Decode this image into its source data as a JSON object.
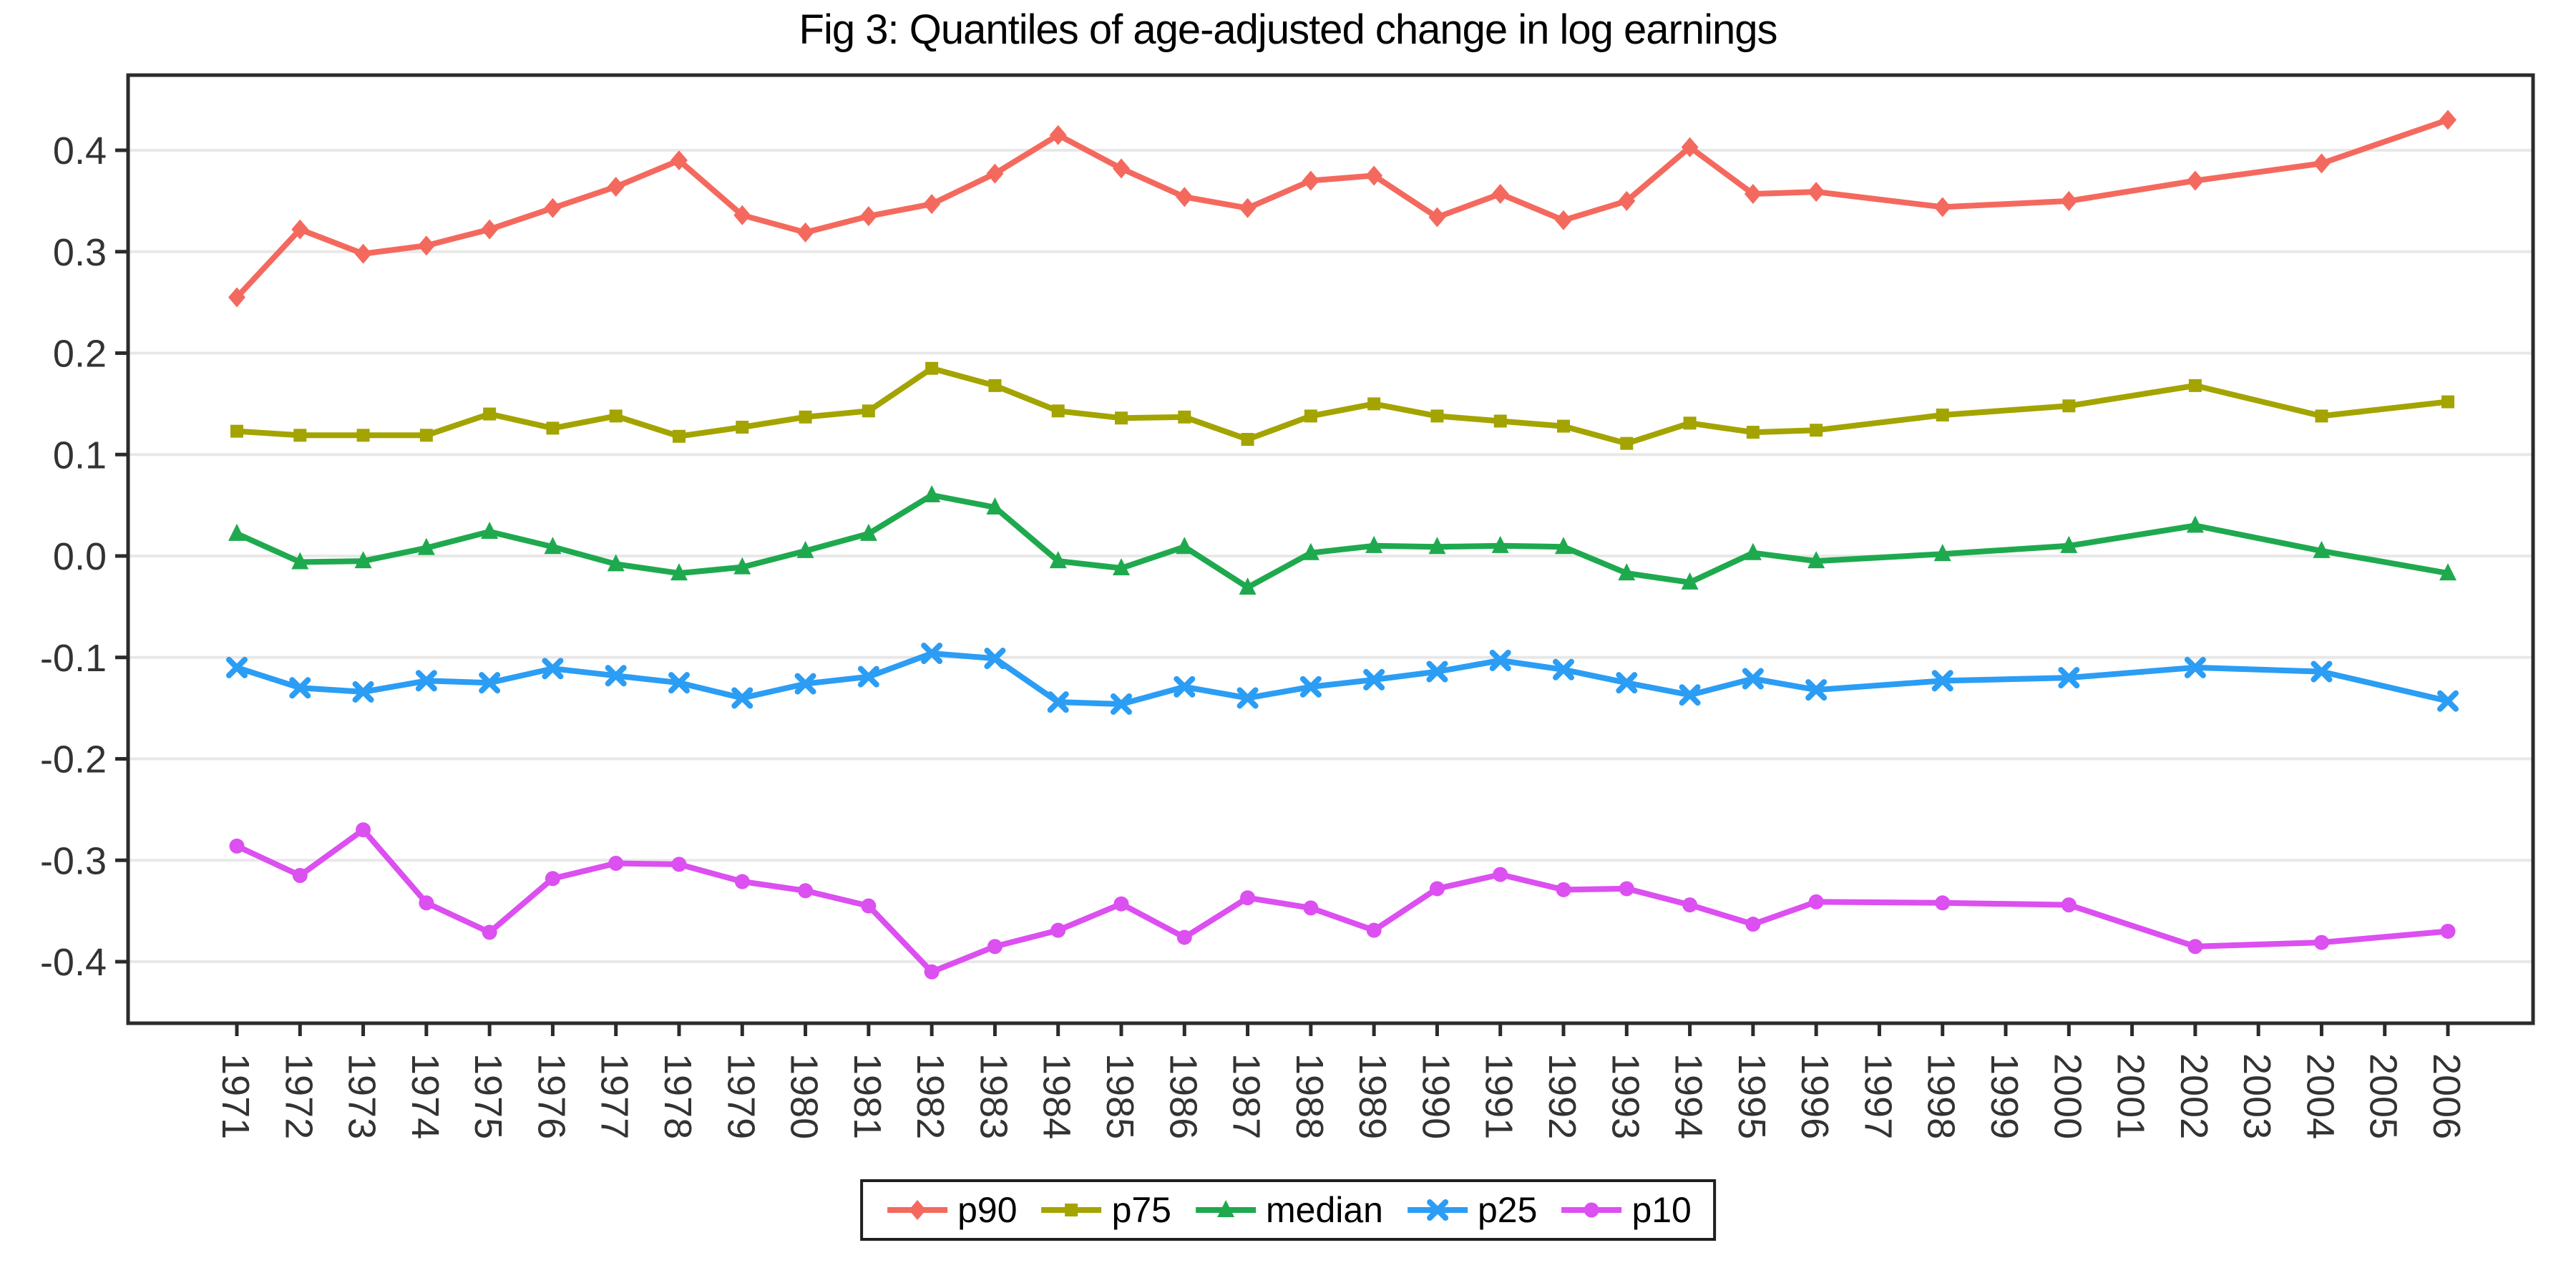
{
  "title": "Fig 3: Quantiles of age-adjusted change in log earnings",
  "chart_data": {
    "type": "line",
    "title": "Fig 3: Quantiles of age-adjusted change in log earnings",
    "xlabel": "",
    "ylabel": "",
    "grid": "horizontal-major-only",
    "legend_position": "bottom-center",
    "background": "#ffffff",
    "gridline_color": "#e8e8e8",
    "axis_color": "#2b2b2b",
    "tick_label_color": "#333333",
    "ylim": [
      -0.46,
      0.475
    ],
    "x_axis_ticks": [
      1971,
      1972,
      1973,
      1974,
      1975,
      1976,
      1977,
      1978,
      1979,
      1980,
      1981,
      1982,
      1983,
      1984,
      1985,
      1986,
      1987,
      1988,
      1989,
      1990,
      1991,
      1992,
      1993,
      1994,
      1995,
      1996,
      1997,
      1998,
      1999,
      2000,
      2001,
      2002,
      2003,
      2004,
      2005,
      2006
    ],
    "y_tick_values": [
      0.4,
      0.3,
      0.2,
      0.1,
      0.0,
      -0.1,
      -0.2,
      -0.3,
      -0.4
    ],
    "y_tick_labels": [
      "0.4",
      "0.3",
      "0.2",
      "0.1",
      "0.0",
      "-0.1",
      "-0.2",
      "-0.3",
      "-0.4"
    ],
    "x": [
      1971,
      1972,
      1973,
      1974,
      1975,
      1976,
      1977,
      1978,
      1979,
      1980,
      1981,
      1982,
      1983,
      1984,
      1985,
      1986,
      1987,
      1988,
      1989,
      1990,
      1991,
      1992,
      1993,
      1994,
      1995,
      1996,
      1998,
      2000,
      2002,
      2004,
      2006
    ],
    "series": [
      {
        "name": "p90",
        "color": "#F4695E",
        "marker": "diamond",
        "values": [
          0.255,
          0.322,
          0.298,
          0.306,
          0.322,
          0.343,
          0.364,
          0.39,
          0.336,
          0.319,
          0.335,
          0.347,
          0.377,
          0.415,
          0.382,
          0.354,
          0.343,
          0.37,
          0.375,
          0.334,
          0.357,
          0.331,
          0.35,
          0.403,
          0.357,
          0.359,
          0.344,
          0.35,
          0.37,
          0.387,
          0.43
        ]
      },
      {
        "name": "p75",
        "color": "#A3A400",
        "marker": "square",
        "values": [
          0.123,
          0.119,
          0.119,
          0.119,
          0.14,
          0.126,
          0.138,
          0.118,
          0.127,
          0.137,
          0.143,
          0.185,
          0.168,
          0.143,
          0.136,
          0.137,
          0.115,
          0.138,
          0.15,
          0.138,
          0.133,
          0.128,
          0.111,
          0.131,
          0.122,
          0.124,
          0.139,
          0.148,
          0.168,
          0.138,
          0.152
        ]
      },
      {
        "name": "median",
        "color": "#1FA94F",
        "marker": "triangle",
        "values": [
          0.022,
          -0.006,
          -0.005,
          0.008,
          0.024,
          0.009,
          -0.008,
          -0.017,
          -0.011,
          0.005,
          0.022,
          0.06,
          0.048,
          -0.005,
          -0.012,
          0.009,
          -0.031,
          0.003,
          0.01,
          0.009,
          0.01,
          0.009,
          -0.017,
          -0.026,
          0.003,
          -0.005,
          0.002,
          0.01,
          0.03,
          0.005,
          -0.017
        ]
      },
      {
        "name": "p25",
        "color": "#2B9DF4",
        "marker": "x",
        "values": [
          -0.11,
          -0.13,
          -0.134,
          -0.123,
          -0.125,
          -0.111,
          -0.118,
          -0.125,
          -0.14,
          -0.126,
          -0.119,
          -0.096,
          -0.101,
          -0.144,
          -0.146,
          -0.129,
          -0.14,
          -0.129,
          -0.122,
          -0.114,
          -0.103,
          -0.112,
          -0.125,
          -0.137,
          -0.121,
          -0.132,
          -0.123,
          -0.12,
          -0.11,
          -0.114,
          -0.143
        ]
      },
      {
        "name": "p10",
        "color": "#DC4FF0",
        "marker": "circle",
        "values": [
          -0.286,
          -0.315,
          -0.27,
          -0.342,
          -0.371,
          -0.318,
          -0.303,
          -0.304,
          -0.321,
          -0.33,
          -0.345,
          -0.41,
          -0.385,
          -0.369,
          -0.343,
          -0.376,
          -0.337,
          -0.347,
          -0.369,
          -0.328,
          -0.314,
          -0.329,
          -0.328,
          -0.344,
          -0.363,
          -0.341,
          -0.342,
          -0.344,
          -0.385,
          -0.381,
          -0.37
        ]
      }
    ]
  }
}
